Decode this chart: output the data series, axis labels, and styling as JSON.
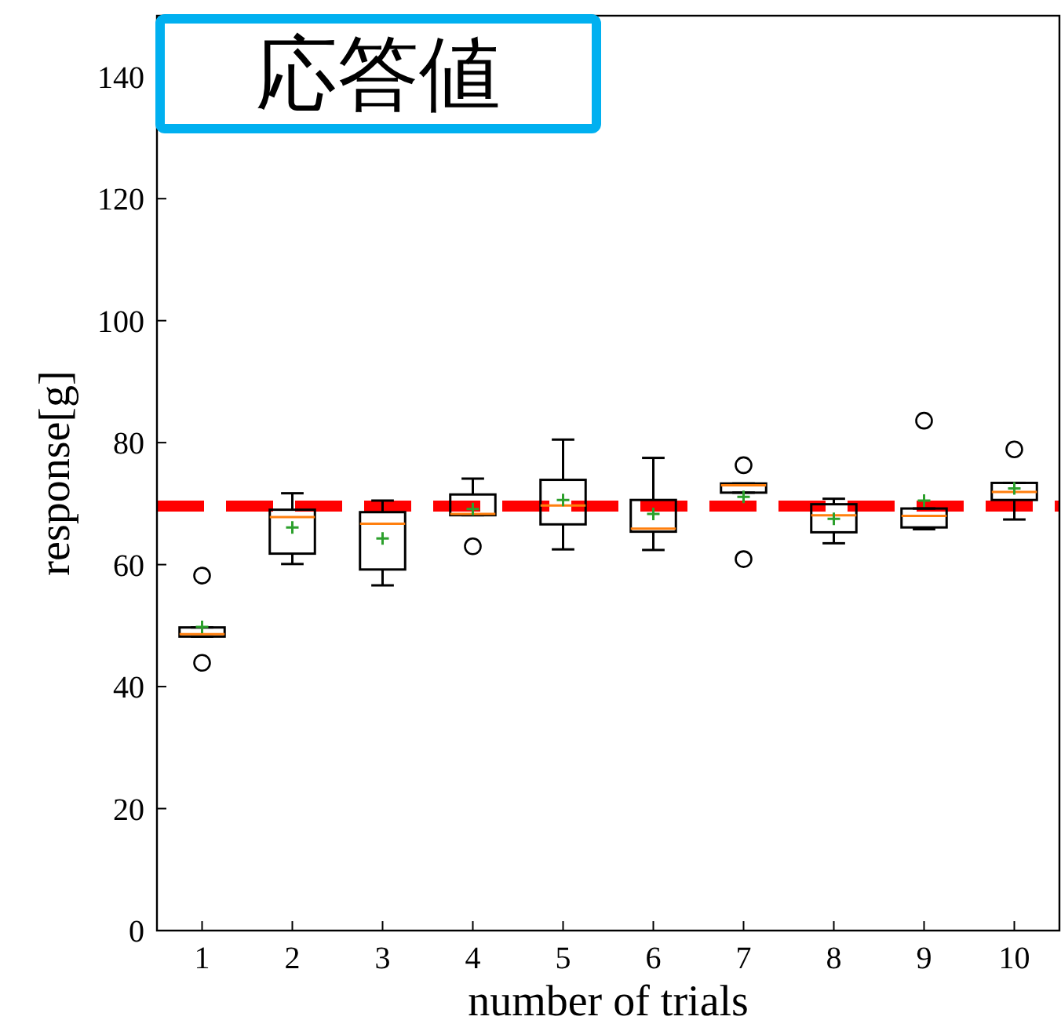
{
  "chart_data": {
    "type": "box",
    "title": "応答値",
    "xlabel": "number of trials",
    "ylabel": "response[g]",
    "categories": [
      "1",
      "2",
      "3",
      "4",
      "5",
      "6",
      "7",
      "8",
      "9",
      "10"
    ],
    "boxes": [
      {
        "low": 48.2,
        "q1": 48.2,
        "median": 48.6,
        "q3": 49.7,
        "high": 49.7,
        "mean": 49.8,
        "outliers": [
          58.2,
          43.9
        ]
      },
      {
        "low": 60.1,
        "q1": 61.8,
        "median": 67.8,
        "q3": 69.0,
        "high": 71.7,
        "mean": 66.1
      },
      {
        "low": 56.6,
        "q1": 59.2,
        "median": 66.7,
        "q3": 68.6,
        "high": 70.5,
        "mean": 64.3
      },
      {
        "low": 68.1,
        "q1": 68.1,
        "median": 68.3,
        "q3": 71.5,
        "high": 74.1,
        "mean": 69.1,
        "outliers": [
          63.0
        ]
      },
      {
        "low": 62.5,
        "q1": 66.6,
        "median": 69.7,
        "q3": 73.9,
        "high": 80.5,
        "mean": 70.6
      },
      {
        "low": 62.4,
        "q1": 65.4,
        "median": 65.9,
        "q3": 70.6,
        "high": 77.5,
        "mean": 68.3
      },
      {
        "low": 71.8,
        "q1": 71.8,
        "median": 73.0,
        "q3": 73.3,
        "high": 73.3,
        "mean": 71.1,
        "outliers": [
          76.3,
          60.9
        ]
      },
      {
        "low": 63.5,
        "q1": 65.3,
        "median": 68.1,
        "q3": 69.9,
        "high": 70.8,
        "mean": 67.5
      },
      {
        "low": 65.8,
        "q1": 66.1,
        "median": 68.0,
        "q3": 69.2,
        "high": 69.2,
        "mean": 70.5,
        "outliers": [
          83.6
        ]
      },
      {
        "low": 67.4,
        "q1": 70.6,
        "median": 71.9,
        "q3": 73.4,
        "high": 73.4,
        "mean": 72.5,
        "outliers": [
          78.9
        ]
      }
    ],
    "ylim": [
      0,
      150
    ],
    "yticks": [
      0,
      20,
      40,
      60,
      80,
      100,
      120,
      140
    ],
    "ref_lines": [
      {
        "axis": "y",
        "value": 69.6,
        "label": null,
        "color": "#ff0000",
        "line_style": "dashed"
      }
    ],
    "grid": false
  }
}
